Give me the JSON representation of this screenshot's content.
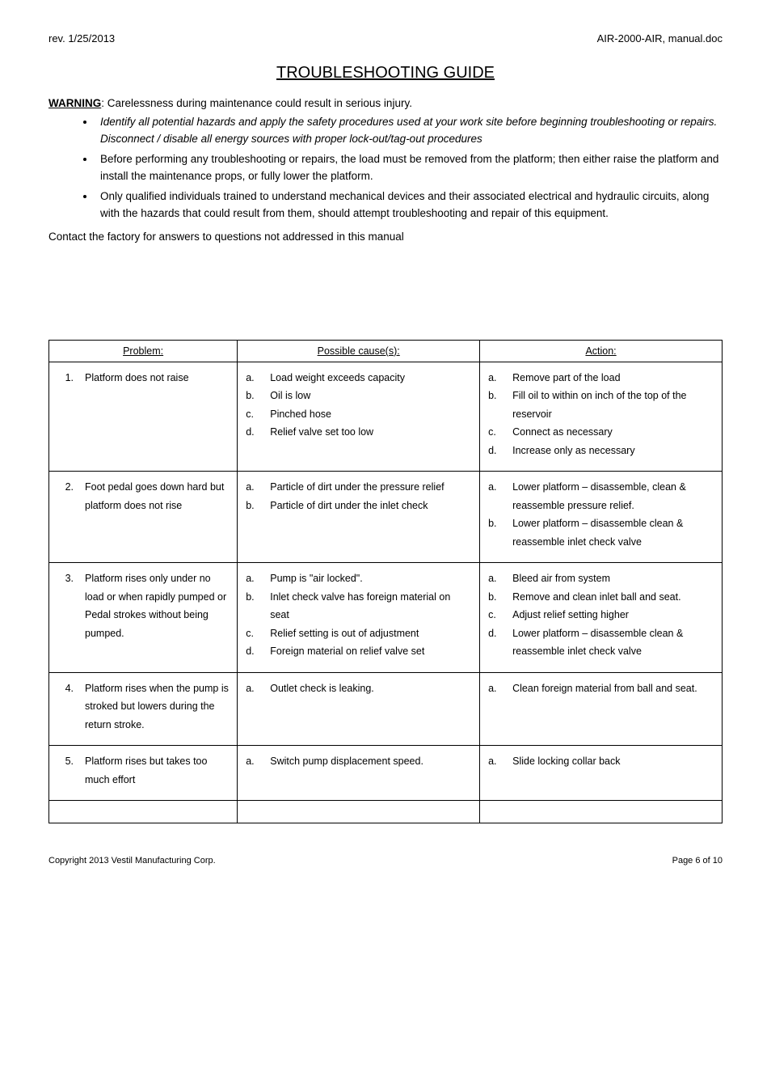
{
  "header": {
    "rev": "rev. 1/25/2013",
    "docid": "AIR-2000-AIR, manual.doc"
  },
  "title": "TROUBLESHOOTING GUIDE",
  "warning": {
    "label": "WARNING",
    "text": ": Carelessness during maintenance could result in serious injury."
  },
  "bullets": [
    "Identify all potential hazards and apply the safety procedures used at your work site before beginning troubleshooting or repairs.  Disconnect / disable all energy sources with proper lock-out/tag-out procedures",
    "Before performing any troubleshooting or repairs, the load must be removed from the platform; then either raise the platform and install the maintenance props, or fully lower the platform.",
    "Only qualified individuals trained to understand mechanical devices and their associated electrical and hydraulic circuits, along with the hazards that could result from them, should attempt troubleshooting and repair of this equipment."
  ],
  "contact": "Contact the factory for answers to questions not addressed in this manual",
  "table": {
    "headers": {
      "problem": "Problem:",
      "cause": "Possible cause(s):",
      "action": "Action:"
    },
    "rows": [
      {
        "num": "1.",
        "problem": "Platform does not raise",
        "causes": [
          {
            "l": "a.",
            "t": "Load weight exceeds capacity"
          },
          {
            "l": "b.",
            "t": "Oil is low"
          },
          {
            "l": "c.",
            "t": "Pinched hose"
          },
          {
            "l": "d.",
            "t": "Relief valve set too low"
          }
        ],
        "actions": [
          {
            "l": "a.",
            "t": "Remove part of the load"
          },
          {
            "l": "b.",
            "t": "Fill oil to within on inch of the top of the reservoir"
          },
          {
            "l": "c.",
            "t": "Connect as necessary"
          },
          {
            "l": "d.",
            "t": "Increase only as necessary"
          }
        ]
      },
      {
        "num": "2.",
        "problem": "Foot pedal goes down hard but platform does not rise",
        "causes": [
          {
            "l": "a.",
            "t": "Particle of dirt under the pressure relief"
          },
          {
            "l": "b.",
            "t": "Particle of dirt under the inlet check"
          }
        ],
        "actions": [
          {
            "l": "a.",
            "t": "Lower platform – disassemble, clean & reassemble pressure relief."
          },
          {
            "l": "b.",
            "t": "Lower platform – disassemble clean & reassemble inlet check valve"
          }
        ]
      },
      {
        "num": "3.",
        "problem": "Platform rises only under no load or when rapidly pumped or\nPedal strokes without being pumped.",
        "causes": [
          {
            "l": "a.",
            "t": "Pump is \"air locked\"."
          },
          {
            "l": "b.",
            "t": "Inlet check valve has foreign material on seat"
          },
          {
            "l": "c.",
            "t": "Relief setting is out of adjustment"
          },
          {
            "l": "d.",
            "t": "Foreign material on relief valve set"
          }
        ],
        "actions": [
          {
            "l": "a.",
            "t": "Bleed air from system"
          },
          {
            "l": "b.",
            "t": "Remove and clean inlet ball and seat."
          },
          {
            "l": "c.",
            "t": "Adjust relief setting higher"
          },
          {
            "l": "d.",
            "t": "Lower platform – disassemble clean & reassemble inlet check valve"
          }
        ]
      },
      {
        "num": "4.",
        "problem": "Platform rises when the pump is stroked but lowers during the return stroke.",
        "causes": [
          {
            "l": "a.",
            "t": "Outlet check is leaking."
          }
        ],
        "actions": [
          {
            "l": "a.",
            "t": "Clean foreign material from ball and seat."
          }
        ]
      },
      {
        "num": "5.",
        "problem": "Platform rises but takes too much effort",
        "causes": [
          {
            "l": "a.",
            "t": "Switch pump displacement speed."
          }
        ],
        "actions": [
          {
            "l": "a.",
            "t": "Slide locking collar back"
          }
        ]
      }
    ]
  },
  "footer": {
    "left": "Copyright 2013   Vestil Manufacturing Corp.",
    "right": "Page 6 of 10"
  }
}
